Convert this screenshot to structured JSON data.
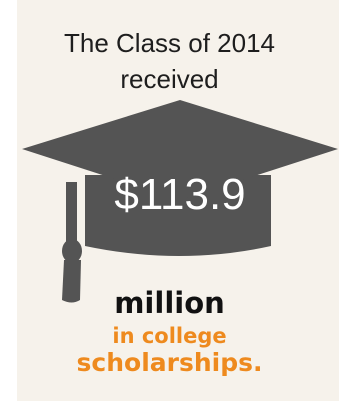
{
  "headline": {
    "line1": "The Class of 2014",
    "line2": "received"
  },
  "figure": {
    "amount": "$113.9",
    "unit": "million",
    "line1": "in college",
    "line2": "scholarships."
  },
  "colors": {
    "background": "#f6f2eb",
    "cap": "#545454",
    "text": "#1e1e1e",
    "accent": "#ee8a1e"
  },
  "icons": {
    "cap": "graduation-cap-icon"
  }
}
